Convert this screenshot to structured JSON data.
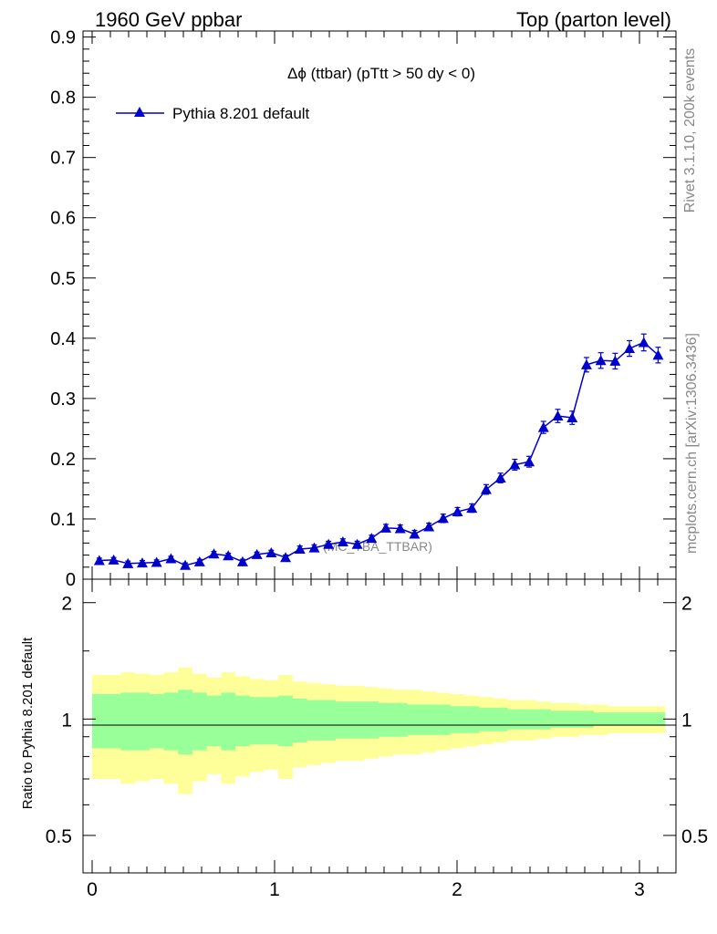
{
  "header": {
    "left": "1960 GeV ppbar",
    "right": "Top (parton level)"
  },
  "side_labels": {
    "rivet": "Rivet 3.1.10,  200k events",
    "mcplots": "mcplots.cern.ch [arXiv:1306.3436]"
  },
  "chart_data": [
    {
      "type": "line",
      "title": "Δϕ (ttbar) (pTtt > 50 dy < 0)",
      "watermark": "(MC_TBA_TTBAR)",
      "xlim": [
        -0.05,
        3.2
      ],
      "ylim": [
        0,
        0.91
      ],
      "yticks": [
        {
          "v": 0,
          "label": "0"
        },
        {
          "v": 0.1,
          "label": "0.1"
        },
        {
          "v": 0.2,
          "label": "0.2"
        },
        {
          "v": 0.3,
          "label": "0.3"
        },
        {
          "v": 0.4,
          "label": "0.4"
        },
        {
          "v": 0.5,
          "label": "0.5"
        },
        {
          "v": 0.6,
          "label": "0.6"
        },
        {
          "v": 0.7,
          "label": "0.7"
        },
        {
          "v": 0.8,
          "label": "0.8"
        },
        {
          "v": 0.9,
          "label": "0.9"
        }
      ],
      "legend_position": "top-left",
      "series": [
        {
          "name": "Pythia 8.201 default",
          "color": "#0000cc",
          "marker": "triangle-up",
          "x": [
            0.0393,
            0.1178,
            0.1963,
            0.2749,
            0.3534,
            0.432,
            0.5105,
            0.589,
            0.6676,
            0.7461,
            0.8247,
            0.9032,
            0.9817,
            1.0603,
            1.1388,
            1.2174,
            1.2959,
            1.3744,
            1.453,
            1.5315,
            1.6101,
            1.6886,
            1.7671,
            1.8457,
            1.9242,
            2.0028,
            2.0813,
            2.1598,
            2.2384,
            2.3169,
            2.3955,
            2.474,
            2.5525,
            2.6311,
            2.7096,
            2.7882,
            2.8667,
            2.9452,
            3.0238,
            3.1023
          ],
          "y": [
            0.031,
            0.032,
            0.026,
            0.027,
            0.028,
            0.034,
            0.023,
            0.029,
            0.042,
            0.039,
            0.029,
            0.041,
            0.044,
            0.036,
            0.05,
            0.052,
            0.058,
            0.062,
            0.058,
            0.068,
            0.085,
            0.084,
            0.075,
            0.087,
            0.101,
            0.112,
            0.118,
            0.149,
            0.168,
            0.19,
            0.195,
            0.252,
            0.271,
            0.268,
            0.356,
            0.363,
            0.362,
            0.383,
            0.393,
            0.372
          ],
          "yerr": [
            0.004,
            0.004,
            0.004,
            0.004,
            0.004,
            0.004,
            0.004,
            0.004,
            0.004,
            0.004,
            0.004,
            0.004,
            0.004,
            0.004,
            0.005,
            0.005,
            0.005,
            0.005,
            0.005,
            0.005,
            0.006,
            0.006,
            0.006,
            0.006,
            0.007,
            0.007,
            0.007,
            0.008,
            0.008,
            0.009,
            0.009,
            0.01,
            0.011,
            0.011,
            0.012,
            0.013,
            0.013,
            0.013,
            0.014,
            0.013
          ]
        }
      ]
    },
    {
      "type": "area",
      "ylabel": "Ratio to Pythia 8.201 default",
      "xlim": [
        -0.05,
        3.2
      ],
      "ylim": [
        0.4,
        2.3
      ],
      "log_y": true,
      "xticks": [
        {
          "v": 0,
          "label": "0"
        },
        {
          "v": 1,
          "label": "1"
        },
        {
          "v": 2,
          "label": "2"
        },
        {
          "v": 3,
          "label": "3"
        }
      ],
      "yticks": [
        {
          "v": 0.5,
          "label": "0.5"
        },
        {
          "v": 1,
          "label": "1"
        },
        {
          "v": 2,
          "label": "2"
        }
      ],
      "reference_line": 1,
      "band_colors": {
        "outer": "#ffff99",
        "inner": "#99ff99",
        "line": "#000000"
      },
      "bins": [
        0.0,
        0.0785,
        0.1571,
        0.2356,
        0.3142,
        0.3927,
        0.4712,
        0.5498,
        0.6283,
        0.7069,
        0.7854,
        0.8639,
        0.9425,
        1.021,
        1.0996,
        1.1781,
        1.2566,
        1.3352,
        1.4137,
        1.4923,
        1.5708,
        1.6493,
        1.7279,
        1.8064,
        1.885,
        1.9635,
        2.042,
        2.1206,
        2.1991,
        2.2777,
        2.3562,
        2.4347,
        2.5133,
        2.5918,
        2.6704,
        2.7489,
        2.8274,
        2.906,
        2.9845,
        3.0631,
        3.1416
      ],
      "outer_band": [
        0.3,
        0.3,
        0.32,
        0.31,
        0.3,
        0.32,
        0.36,
        0.31,
        0.28,
        0.32,
        0.29,
        0.27,
        0.26,
        0.3,
        0.25,
        0.24,
        0.23,
        0.22,
        0.22,
        0.21,
        0.2,
        0.19,
        0.19,
        0.18,
        0.17,
        0.16,
        0.15,
        0.14,
        0.13,
        0.12,
        0.12,
        0.11,
        0.1,
        0.1,
        0.09,
        0.09,
        0.08,
        0.08,
        0.08,
        0.08
      ],
      "inner_band": [
        0.16,
        0.16,
        0.17,
        0.17,
        0.16,
        0.17,
        0.19,
        0.17,
        0.15,
        0.17,
        0.15,
        0.14,
        0.14,
        0.15,
        0.13,
        0.12,
        0.12,
        0.11,
        0.11,
        0.11,
        0.1,
        0.1,
        0.09,
        0.09,
        0.09,
        0.08,
        0.08,
        0.07,
        0.07,
        0.06,
        0.06,
        0.06,
        0.05,
        0.05,
        0.05,
        0.04,
        0.04,
        0.04,
        0.04,
        0.04
      ]
    }
  ]
}
